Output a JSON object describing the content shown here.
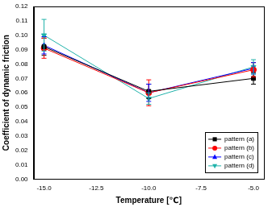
{
  "chart_data": {
    "type": "line",
    "x_label": "Temperature [℃]",
    "y_label": "Coefficient of dynamic friction",
    "x": [
      -15,
      -10,
      -5
    ],
    "series": [
      {
        "name": "pattern (a)",
        "color": "#000000",
        "marker": "square",
        "values": [
          0.092,
          0.061,
          0.07
        ],
        "errors": [
          0.006,
          0.005,
          0.004
        ]
      },
      {
        "name": "pattern (b)",
        "color": "#ff0000",
        "marker": "circle",
        "values": [
          0.091,
          0.06,
          0.076
        ],
        "errors": [
          0.007,
          0.009,
          0.005
        ]
      },
      {
        "name": "pattern (c)",
        "color": "#0000ff",
        "marker": "triangle",
        "values": [
          0.093,
          0.06,
          0.077
        ],
        "errors": [
          0.006,
          0.006,
          0.004
        ]
      },
      {
        "name": "pattern (d)",
        "color": "#20b2aa",
        "marker": "triangle_down",
        "values": [
          0.1,
          0.056,
          0.078
        ],
        "errors": [
          0.011,
          0.004,
          0.005
        ]
      }
    ],
    "xlim": [
      -15.5,
      -4.5
    ],
    "xticks": [
      {
        "value": -15,
        "label": "-15.0"
      },
      {
        "value": -12.5,
        "label": "-12.5"
      },
      {
        "value": -10,
        "label": "-10.0"
      },
      {
        "value": -7.5,
        "label": "-7.5"
      },
      {
        "value": -5,
        "label": "-5.0"
      }
    ],
    "ylim": [
      0,
      0.12
    ],
    "yticks": [
      {
        "value": 0,
        "label": "0.00"
      },
      {
        "value": 0.01,
        "label": "0.01"
      },
      {
        "value": 0.02,
        "label": "0.02"
      },
      {
        "value": 0.03,
        "label": "0.03"
      },
      {
        "value": 0.04,
        "label": "0.04"
      },
      {
        "value": 0.05,
        "label": "0.05"
      },
      {
        "value": 0.06,
        "label": "0.06"
      },
      {
        "value": 0.07,
        "label": "0.07"
      },
      {
        "value": 0.08,
        "label": "0.08"
      },
      {
        "value": 0.09,
        "label": "0.09"
      },
      {
        "value": 0.1,
        "label": "0.10"
      },
      {
        "value": 0.11,
        "label": "0.11"
      },
      {
        "value": 0.12,
        "label": "0.12"
      }
    ],
    "grid": false,
    "legend": "lower right"
  }
}
